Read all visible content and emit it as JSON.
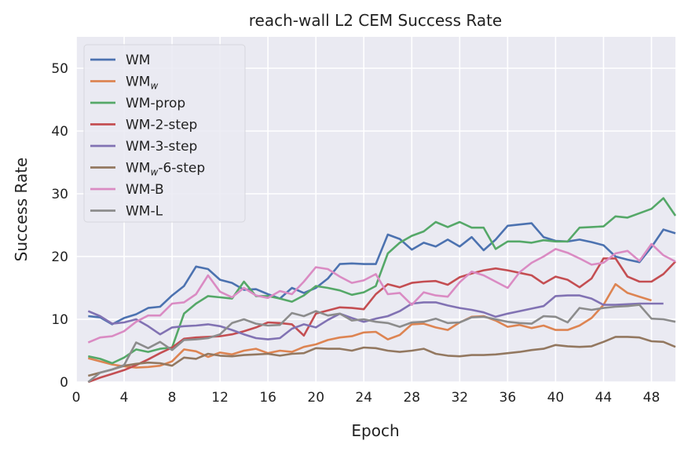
{
  "chart_data": {
    "type": "line",
    "title": "reach-wall L2 CEM Success Rate",
    "xlabel": "Epoch",
    "ylabel": "Success Rate",
    "xlim": [
      0,
      50
    ],
    "ylim": [
      0,
      55
    ],
    "xticks": [
      0,
      4,
      8,
      12,
      16,
      20,
      24,
      28,
      32,
      36,
      40,
      44,
      48
    ],
    "yticks": [
      0,
      10,
      20,
      30,
      40,
      50
    ],
    "grid": true,
    "legend_placement": "top-left",
    "background": "#eaeaf2",
    "series": [
      {
        "name": "WM",
        "sub": "",
        "suffix": "",
        "color": "#4c72b0",
        "x_start": 1,
        "values": [
          10.5,
          10.3,
          9.2,
          10.2,
          10.8,
          11.8,
          12,
          13.8,
          15.3,
          18.4,
          18,
          16.3,
          15.8,
          14.7,
          14.8,
          14,
          13.3,
          15,
          14.2,
          15,
          16.5,
          18.8,
          18.9,
          18.8,
          18.8,
          23.5,
          22.8,
          21.1,
          22.2,
          21.6,
          22.7,
          21.6,
          23.1,
          21,
          22.7,
          24.9,
          25.1,
          25.3,
          23.1,
          22.5,
          22.4,
          22.7,
          22.3,
          21.8,
          20,
          19.5,
          19.1,
          21.5,
          24.3,
          23.7
        ]
      },
      {
        "name": "WM",
        "sub": "w",
        "suffix": "",
        "color": "#dd8452",
        "x_start": 1,
        "values": [
          3.8,
          3.3,
          2.8,
          2.5,
          2.3,
          2.4,
          2.6,
          3.3,
          5.2,
          4.9,
          4,
          4.7,
          4.4,
          5,
          5.3,
          4.6,
          5,
          4.8,
          5.6,
          6,
          6.7,
          7.1,
          7.3,
          7.9,
          8,
          6.8,
          7.5,
          9.2,
          9.3,
          8.7,
          8.3,
          9.5,
          10.4,
          10.5,
          9.8,
          8.8,
          9.1,
          8.6,
          9,
          8.3,
          8.3,
          9,
          10.2,
          12.3,
          15.6,
          14.2,
          13.6,
          13.0
        ]
      },
      {
        "name": "WM-prop",
        "sub": "",
        "suffix": "",
        "color": "#55a868",
        "x_start": 1,
        "values": [
          4.1,
          3.7,
          3.0,
          3.9,
          5.2,
          4.8,
          5.3,
          5.5,
          10.9,
          12.5,
          13.7,
          13.5,
          13.3,
          16,
          13.7,
          13.7,
          13.3,
          12.8,
          13.8,
          15.3,
          15,
          14.6,
          13.9,
          14.3,
          15.3,
          20.5,
          22.2,
          23.3,
          24,
          25.5,
          24.7,
          25.5,
          24.6,
          24.6,
          21.2,
          22.4,
          22.4,
          22.2,
          22.6,
          22.4,
          22.4,
          24.6,
          24.7,
          24.8,
          26.4,
          26.2,
          26.9,
          27.6,
          29.3,
          26.5
        ]
      },
      {
        "name": "WM-2-step",
        "sub": "",
        "suffix": "",
        "color": "#c44e52",
        "x_start": 1,
        "values": [
          0,
          0.7,
          1.3,
          1.9,
          2.7,
          3.6,
          4.6,
          5.5,
          6.9,
          7.1,
          7.2,
          7.3,
          7.6,
          8.1,
          8.7,
          9.5,
          9.4,
          9.2,
          7.4,
          10.9,
          11.4,
          11.9,
          11.8,
          11.6,
          14,
          15.6,
          15.1,
          15.8,
          16,
          16.1,
          15.5,
          16.7,
          17.3,
          17.8,
          18.1,
          17.8,
          17.4,
          17,
          15.7,
          16.8,
          16.3,
          15.1,
          16.5,
          19.7,
          19.7,
          16.8,
          16,
          16,
          17.2,
          19.2
        ]
      },
      {
        "name": "WM-3-step",
        "sub": "",
        "suffix": "",
        "color": "#8172b3",
        "x_start": 1,
        "values": [
          11.3,
          10.5,
          9.3,
          9.5,
          10,
          8.9,
          7.6,
          8.7,
          8.9,
          9,
          9.2,
          8.9,
          8.3,
          7.6,
          7,
          6.8,
          7,
          8.5,
          9.2,
          8.7,
          9.9,
          10.9,
          10.2,
          9.6,
          10.1,
          10.5,
          11.3,
          12.5,
          12.7,
          12.7,
          12.2,
          11.8,
          11.5,
          11.1,
          10.4,
          10.9,
          11.3,
          11.7,
          12.1,
          13.7,
          13.8,
          13.8,
          13.3,
          12.3,
          12.3,
          12.4,
          12.5,
          12.5,
          12.5
        ]
      },
      {
        "name": "WM",
        "sub": "w",
        "suffix": "-6-step",
        "color": "#937860",
        "x_start": 1,
        "values": [
          1,
          1.5,
          2,
          2.6,
          2.9,
          3.1,
          3.0,
          2.6,
          3.9,
          3.7,
          4.5,
          4.2,
          4.1,
          4.3,
          4.4,
          4.5,
          4.2,
          4.5,
          4.6,
          5.4,
          5.3,
          5.3,
          5.0,
          5.5,
          5.4,
          5.0,
          4.8,
          5,
          5.3,
          4.5,
          4.2,
          4.1,
          4.3,
          4.3,
          4.4,
          4.6,
          4.8,
          5.1,
          5.3,
          5.9,
          5.7,
          5.6,
          5.7,
          6.4,
          7.2,
          7.2,
          7.1,
          6.5,
          6.4,
          5.6
        ]
      },
      {
        "name": "WM-B",
        "sub": "",
        "suffix": "",
        "color": "#da8bc3",
        "x_start": 1,
        "values": [
          6.3,
          7.1,
          7.3,
          8.1,
          9.6,
          10.6,
          10.6,
          12.5,
          12.7,
          14,
          17,
          14.4,
          13.5,
          15,
          13.8,
          13.4,
          14.5,
          14,
          16,
          18.3,
          18,
          16.8,
          15.8,
          16.2,
          17.2,
          14,
          14.2,
          12.3,
          14.3,
          13.8,
          13.6,
          15.9,
          17.6,
          17,
          16,
          15,
          17.5,
          19,
          20,
          21.2,
          20.6,
          19.7,
          18.7,
          19,
          20.5,
          20.9,
          19.3,
          22,
          20.2,
          19.2
        ]
      },
      {
        "name": "WM-L",
        "sub": "",
        "suffix": "",
        "color": "#8c8c8c",
        "x_start": 1,
        "values": [
          0,
          1.5,
          2,
          2.7,
          6.3,
          5.4,
          6.4,
          5.1,
          6.7,
          6.8,
          7,
          7.6,
          9.4,
          10,
          9.3,
          9,
          9.1,
          11,
          10.5,
          11.3,
          10.6,
          10.9,
          9.8,
          10,
          9.6,
          9.4,
          8.8,
          9.5,
          9.6,
          10.1,
          9.4,
          9.5,
          10.3,
          10.4,
          10,
          9.6,
          9.4,
          9.3,
          10.5,
          10.4,
          9.5,
          11.8,
          11.5,
          11.8,
          12,
          12.1,
          12.3,
          10.1,
          10,
          9.6
        ]
      }
    ]
  }
}
